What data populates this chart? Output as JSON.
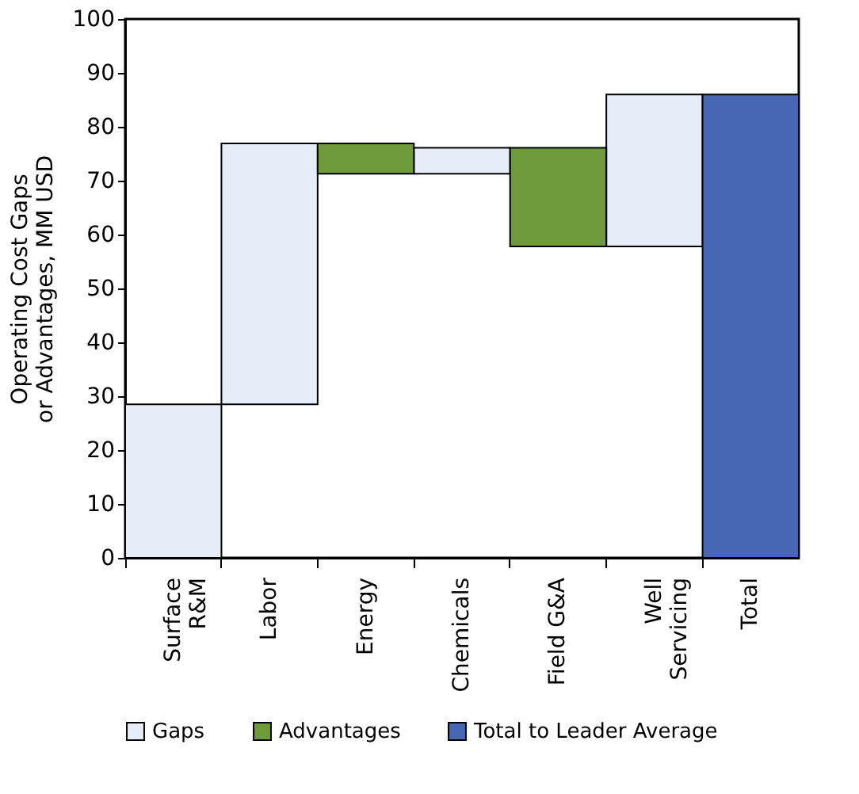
{
  "chart_data": {
    "type": "bar",
    "ylabel": "Operating Cost Gaps\nor Advantages, MM USD",
    "categories": [
      "Surface\nR&M",
      "Labor",
      "Energy",
      "Chemicals",
      "Field G&A",
      "Well\nServicing",
      "Total"
    ],
    "series": [
      {
        "name": "Gaps",
        "color": "#e6ecf8",
        "values": [
          28.5,
          48.4,
          null,
          4.8,
          null,
          28.2,
          null
        ],
        "base": [
          0,
          28.5,
          null,
          71.3,
          null,
          57.8,
          null
        ]
      },
      {
        "name": "Advantages",
        "color": "#6f9a3c",
        "values": [
          null,
          null,
          5.6,
          null,
          18.3,
          null,
          null
        ],
        "base": [
          null,
          null,
          71.3,
          null,
          57.8,
          null,
          null
        ]
      },
      {
        "name": "Total to Leader Average",
        "color": "#4767b5",
        "values": [
          null,
          null,
          null,
          null,
          null,
          null,
          86.0
        ],
        "base": [
          null,
          null,
          null,
          null,
          null,
          null,
          0
        ]
      }
    ],
    "ylim": [
      0,
      100
    ],
    "yticks": [
      0,
      10,
      20,
      30,
      40,
      50,
      60,
      70,
      80,
      90,
      100
    ],
    "grid": false,
    "legend": "bottom"
  }
}
